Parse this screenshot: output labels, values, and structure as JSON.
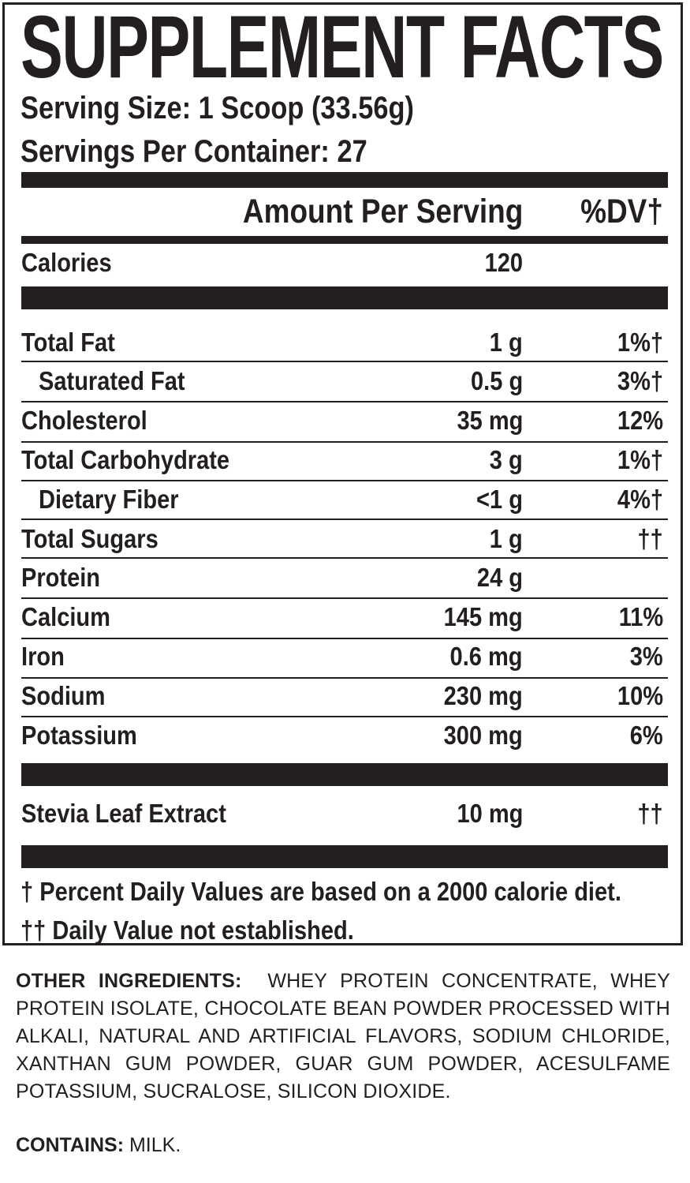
{
  "title": "SUPPLEMENT FACTS",
  "serving_size": "Serving Size: 1 Scoop (33.56g)",
  "servings_per_container": "Servings Per Container: 27",
  "header": {
    "amount": "Amount Per Serving",
    "dv": "%DV†"
  },
  "calories": {
    "name": "Calories",
    "amount": "120"
  },
  "nutrients": [
    {
      "name": "Total Fat",
      "amount": "1 g",
      "dv": "1%†"
    },
    {
      "name": "Saturated Fat",
      "amount": "0.5 g",
      "dv": "3%†"
    },
    {
      "name": "Cholesterol",
      "amount": "35 mg",
      "dv": "12%"
    },
    {
      "name": "Total Carbohydrate",
      "amount": "3 g",
      "dv": "1%†"
    },
    {
      "name": "Dietary Fiber",
      "amount": "<1 g",
      "dv": "4%†"
    },
    {
      "name": "Total Sugars",
      "amount": "1 g",
      "dv": "††"
    },
    {
      "name": "Protein",
      "amount": "24 g",
      "dv": ""
    },
    {
      "name": "Calcium",
      "amount": "145 mg",
      "dv": "11%"
    },
    {
      "name": "Iron",
      "amount": "0.6 mg",
      "dv": "3%"
    },
    {
      "name": "Sodium",
      "amount": "230 mg",
      "dv": "10%"
    },
    {
      "name": "Potassium",
      "amount": "300 mg",
      "dv": "6%"
    }
  ],
  "other": [
    {
      "name": "Stevia Leaf Extract",
      "amount": "10 mg",
      "dv": "††"
    }
  ],
  "footnotes": {
    "dv_note": "† Percent Daily Values are based on a 2000 calorie diet.",
    "not_established": "†† Daily Value not established."
  },
  "other_ingredients": {
    "label": "OTHER INGREDIENTS:",
    "text": "WHEY PROTEIN CONCENTRATE, WHEY PROTEIN ISOLATE, CHOCOLATE BEAN POWDER PROCESSED WITH ALKALI, NATURAL AND ARTIFICIAL FLAVORS, SODIUM CHLORIDE, XANTHAN GUM POWDER, GUAR GUM POWDER, ACESULFAME POTASSIUM, SUCRALOSE, SILICON DIOXIDE."
  },
  "contains": {
    "label": "CONTAINS:",
    "text": "MILK."
  }
}
